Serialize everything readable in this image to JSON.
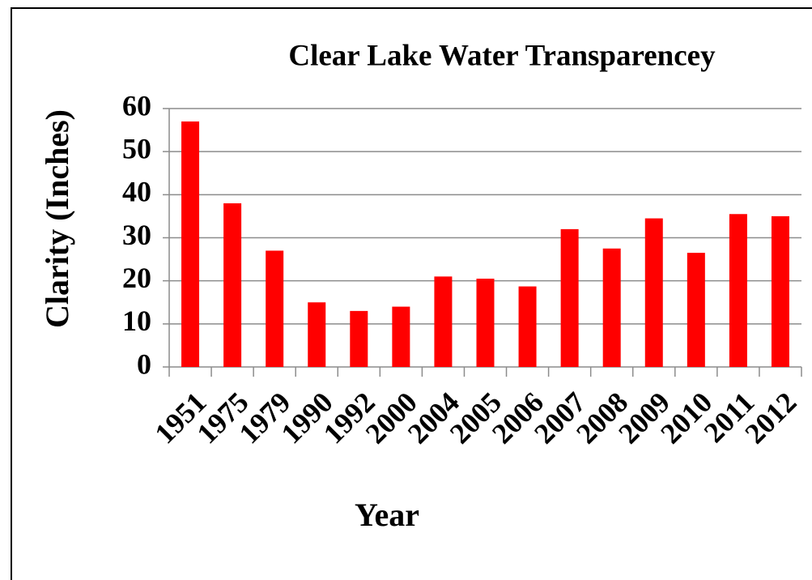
{
  "chart_data": {
    "type": "bar",
    "title": "Clear Lake Water Transparencey",
    "x_label": "Year",
    "y_label": "Clarity (Inches)",
    "categories": [
      "1951",
      "1975",
      "1979",
      "1990",
      "1992",
      "2000",
      "2004",
      "2005",
      "2006",
      "2007",
      "2008",
      "2009",
      "2010",
      "2011",
      "2012"
    ],
    "values": [
      57,
      38,
      27,
      15,
      13,
      14,
      21,
      20.5,
      18.7,
      32,
      27.5,
      34.5,
      26.5,
      35.5,
      35
    ],
    "color": "#ff0000",
    "ylim": [
      0,
      60
    ],
    "yticks": [
      0,
      10,
      20,
      30,
      40,
      50,
      60
    ],
    "grid": true
  }
}
